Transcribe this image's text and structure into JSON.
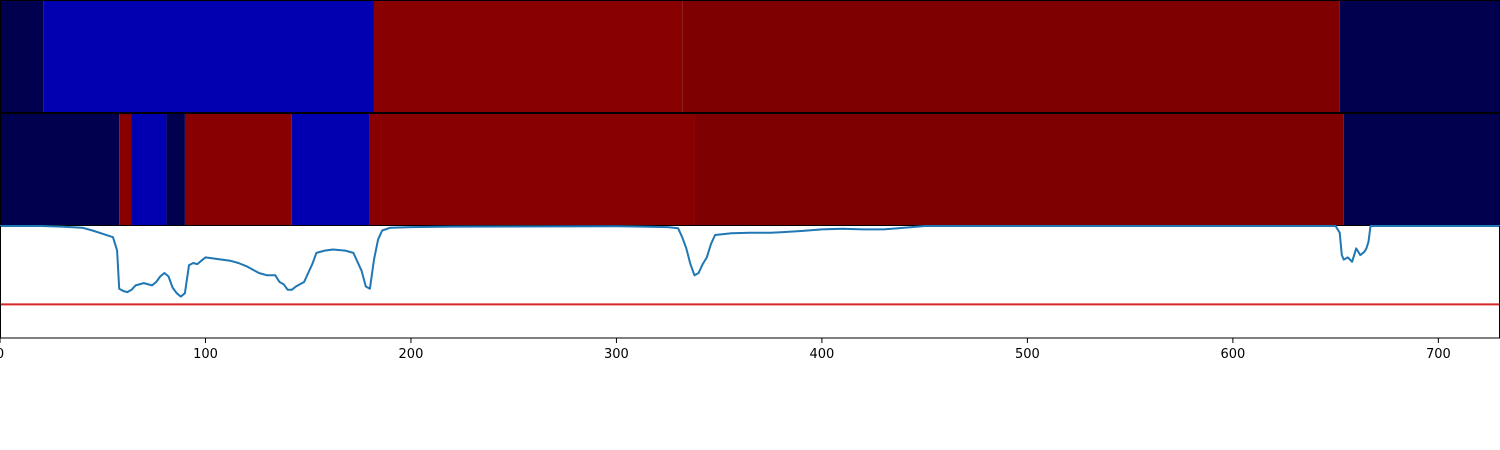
{
  "chart_data": {
    "type": "heatmap",
    "xlim": [
      0,
      730
    ],
    "xticks": [
      0,
      100,
      200,
      300,
      400,
      500,
      600,
      700
    ],
    "segment_rows": [
      {
        "segments": [
          {
            "start": 0,
            "end": 21,
            "color": "#00004f"
          },
          {
            "start": 21,
            "end": 182,
            "color": "#0000b0"
          },
          {
            "start": 182,
            "end": 332,
            "color": "#880000"
          },
          {
            "start": 332,
            "end": 652,
            "color": "#7f0000"
          },
          {
            "start": 652,
            "end": 730,
            "color": "#00004f"
          }
        ]
      },
      {
        "segments": [
          {
            "start": 0,
            "end": 58,
            "color": "#00004f"
          },
          {
            "start": 58,
            "end": 64,
            "color": "#880000"
          },
          {
            "start": 64,
            "end": 81,
            "color": "#0000b0"
          },
          {
            "start": 81,
            "end": 90,
            "color": "#00004f"
          },
          {
            "start": 90,
            "end": 142,
            "color": "#880000"
          },
          {
            "start": 142,
            "end": 180,
            "color": "#0000b0"
          },
          {
            "start": 180,
            "end": 338,
            "color": "#880000"
          },
          {
            "start": 338,
            "end": 654,
            "color": "#7f0000"
          },
          {
            "start": 654,
            "end": 730,
            "color": "#00004f"
          }
        ]
      }
    ],
    "line": {
      "color": "#1f77b4",
      "ylim": [
        0,
        1
      ],
      "threshold": {
        "value": 0.3,
        "color": "#d62728"
      },
      "points": [
        [
          0,
          1.0
        ],
        [
          20,
          1.0
        ],
        [
          30,
          0.995
        ],
        [
          40,
          0.985
        ],
        [
          45,
          0.96
        ],
        [
          50,
          0.93
        ],
        [
          55,
          0.9
        ],
        [
          57,
          0.78
        ],
        [
          58,
          0.44
        ],
        [
          60,
          0.42
        ],
        [
          62,
          0.41
        ],
        [
          64,
          0.43
        ],
        [
          66,
          0.47
        ],
        [
          70,
          0.49
        ],
        [
          74,
          0.47
        ],
        [
          76,
          0.5
        ],
        [
          78,
          0.55
        ],
        [
          80,
          0.58
        ],
        [
          82,
          0.55
        ],
        [
          84,
          0.45
        ],
        [
          86,
          0.4
        ],
        [
          88,
          0.37
        ],
        [
          90,
          0.4
        ],
        [
          92,
          0.65
        ],
        [
          94,
          0.67
        ],
        [
          96,
          0.66
        ],
        [
          98,
          0.69
        ],
        [
          100,
          0.72
        ],
        [
          104,
          0.71
        ],
        [
          108,
          0.7
        ],
        [
          112,
          0.69
        ],
        [
          116,
          0.67
        ],
        [
          120,
          0.64
        ],
        [
          124,
          0.6
        ],
        [
          126,
          0.58
        ],
        [
          130,
          0.56
        ],
        [
          134,
          0.56
        ],
        [
          136,
          0.5
        ],
        [
          138,
          0.48
        ],
        [
          140,
          0.43
        ],
        [
          142,
          0.43
        ],
        [
          144,
          0.46
        ],
        [
          148,
          0.5
        ],
        [
          150,
          0.58
        ],
        [
          152,
          0.66
        ],
        [
          154,
          0.76
        ],
        [
          158,
          0.78
        ],
        [
          162,
          0.79
        ],
        [
          168,
          0.78
        ],
        [
          172,
          0.76
        ],
        [
          176,
          0.6
        ],
        [
          178,
          0.46
        ],
        [
          180,
          0.44
        ],
        [
          182,
          0.7
        ],
        [
          184,
          0.88
        ],
        [
          186,
          0.96
        ],
        [
          190,
          0.985
        ],
        [
          200,
          0.99
        ],
        [
          220,
          0.995
        ],
        [
          300,
          0.998
        ],
        [
          325,
          0.99
        ],
        [
          330,
          0.98
        ],
        [
          332,
          0.9
        ],
        [
          334,
          0.8
        ],
        [
          336,
          0.66
        ],
        [
          338,
          0.56
        ],
        [
          340,
          0.58
        ],
        [
          342,
          0.66
        ],
        [
          344,
          0.72
        ],
        [
          346,
          0.84
        ],
        [
          348,
          0.92
        ],
        [
          356,
          0.935
        ],
        [
          365,
          0.94
        ],
        [
          375,
          0.94
        ],
        [
          380,
          0.945
        ],
        [
          390,
          0.955
        ],
        [
          400,
          0.97
        ],
        [
          410,
          0.975
        ],
        [
          420,
          0.97
        ],
        [
          430,
          0.97
        ],
        [
          440,
          0.985
        ],
        [
          450,
          1.0
        ],
        [
          650,
          1.0
        ],
        [
          652,
          0.94
        ],
        [
          653,
          0.74
        ],
        [
          654,
          0.7
        ],
        [
          656,
          0.72
        ],
        [
          658,
          0.68
        ],
        [
          660,
          0.8
        ],
        [
          662,
          0.74
        ],
        [
          664,
          0.77
        ],
        [
          665,
          0.8
        ],
        [
          666,
          0.86
        ],
        [
          667,
          1.0
        ],
        [
          730,
          1.0
        ]
      ]
    }
  }
}
